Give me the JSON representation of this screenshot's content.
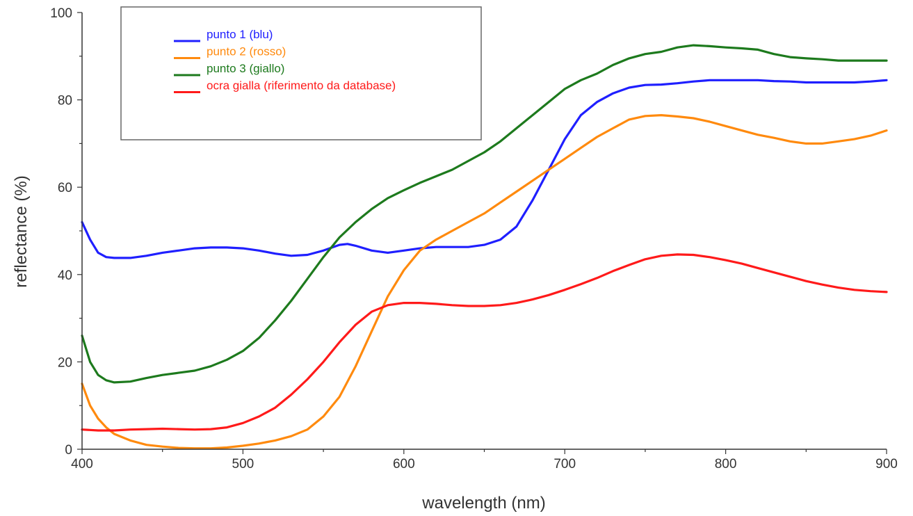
{
  "chart_data": {
    "type": "line",
    "title": "",
    "xlabel": "wavelength (nm)",
    "ylabel": "reflectance (%)",
    "xlim": [
      400,
      900
    ],
    "ylim": [
      0,
      100
    ],
    "x_ticks": [
      "400",
      "500",
      "600",
      "700",
      "800",
      "900"
    ],
    "y_ticks": [
      "0",
      "20",
      "40",
      "60",
      "80",
      "100"
    ],
    "grid": false,
    "legend_position": "top-left",
    "series": [
      {
        "name": "punto 1 (blu)",
        "color": "#1f1fff",
        "x": [
          400,
          405,
          410,
          415,
          420,
          430,
          440,
          450,
          460,
          470,
          480,
          490,
          500,
          510,
          520,
          530,
          540,
          550,
          560,
          565,
          570,
          580,
          590,
          600,
          610,
          620,
          630,
          640,
          650,
          660,
          670,
          680,
          690,
          700,
          710,
          720,
          730,
          740,
          750,
          760,
          770,
          780,
          790,
          800,
          810,
          820,
          830,
          840,
          850,
          860,
          870,
          880,
          890,
          900
        ],
        "y": [
          52,
          48,
          45,
          44,
          43.8,
          43.8,
          44.3,
          45,
          45.5,
          46,
          46.2,
          46.2,
          46,
          45.5,
          44.8,
          44.3,
          44.5,
          45.5,
          46.8,
          47,
          46.6,
          45.5,
          45,
          45.5,
          46,
          46.3,
          46.3,
          46.3,
          46.8,
          48,
          51,
          57,
          64,
          71,
          76.5,
          79.5,
          81.5,
          82.8,
          83.4,
          83.5,
          83.8,
          84.2,
          84.5,
          84.5,
          84.5,
          84.5,
          84.3,
          84.2,
          84,
          84,
          84,
          84,
          84.2,
          84.5
        ]
      },
      {
        "name": "punto 2 (rosso)",
        "color": "#ff8a0e",
        "x": [
          400,
          405,
          410,
          415,
          420,
          430,
          440,
          450,
          460,
          470,
          480,
          490,
          500,
          510,
          520,
          530,
          540,
          550,
          560,
          570,
          580,
          590,
          600,
          610,
          620,
          630,
          640,
          650,
          660,
          670,
          680,
          690,
          700,
          710,
          720,
          730,
          740,
          750,
          760,
          770,
          780,
          790,
          800,
          810,
          820,
          830,
          840,
          850,
          860,
          870,
          880,
          890,
          900
        ],
        "y": [
          15,
          10,
          7,
          5,
          3.5,
          2,
          1,
          0.6,
          0.3,
          0.2,
          0.2,
          0.4,
          0.8,
          1.3,
          2,
          3,
          4.5,
          7.5,
          12,
          19,
          27,
          35,
          41,
          45.5,
          48,
          50,
          52,
          54,
          56.5,
          59,
          61.5,
          64,
          66.5,
          69,
          71.5,
          73.5,
          75.5,
          76.3,
          76.5,
          76.2,
          75.8,
          75,
          74,
          73,
          72,
          71.3,
          70.5,
          70,
          70,
          70.5,
          71,
          71.8,
          73
        ]
      },
      {
        "name": "punto 3 (giallo)",
        "color": "#1d7a1d",
        "x": [
          400,
          405,
          410,
          415,
          420,
          430,
          440,
          450,
          460,
          470,
          480,
          490,
          500,
          510,
          520,
          530,
          540,
          550,
          560,
          570,
          580,
          590,
          600,
          610,
          620,
          630,
          640,
          650,
          660,
          670,
          680,
          690,
          700,
          710,
          720,
          730,
          740,
          750,
          760,
          770,
          780,
          790,
          800,
          810,
          820,
          830,
          840,
          850,
          860,
          870,
          880,
          890,
          900
        ],
        "y": [
          26,
          20,
          17,
          15.8,
          15.3,
          15.5,
          16.3,
          17,
          17.5,
          18,
          19,
          20.5,
          22.5,
          25.5,
          29.5,
          34,
          39,
          44,
          48.5,
          52,
          55,
          57.5,
          59.3,
          61,
          62.5,
          64,
          66,
          68,
          70.5,
          73.5,
          76.5,
          79.5,
          82.5,
          84.5,
          86,
          88,
          89.5,
          90.5,
          91,
          92,
          92.5,
          92.3,
          92,
          91.8,
          91.5,
          90.5,
          89.8,
          89.5,
          89.3,
          89,
          89,
          89,
          89
        ]
      },
      {
        "name": "ocra gialla (riferimento da database)",
        "color": "#ff1a1a",
        "x": [
          400,
          410,
          420,
          430,
          440,
          450,
          460,
          470,
          480,
          490,
          500,
          510,
          520,
          530,
          540,
          550,
          560,
          570,
          580,
          590,
          600,
          610,
          620,
          630,
          640,
          650,
          660,
          670,
          680,
          690,
          700,
          710,
          720,
          730,
          740,
          750,
          760,
          770,
          780,
          790,
          800,
          810,
          820,
          830,
          840,
          850,
          860,
          870,
          880,
          890,
          900
        ],
        "y": [
          4.5,
          4.3,
          4.3,
          4.5,
          4.6,
          4.7,
          4.6,
          4.5,
          4.6,
          5,
          6,
          7.5,
          9.5,
          12.5,
          16,
          20,
          24.5,
          28.5,
          31.5,
          33,
          33.5,
          33.5,
          33.3,
          33,
          32.8,
          32.8,
          33,
          33.5,
          34.3,
          35.3,
          36.5,
          37.8,
          39.2,
          40.8,
          42.2,
          43.5,
          44.3,
          44.6,
          44.5,
          44,
          43.3,
          42.5,
          41.5,
          40.5,
          39.5,
          38.5,
          37.7,
          37,
          36.5,
          36.2,
          36
        ]
      }
    ]
  }
}
